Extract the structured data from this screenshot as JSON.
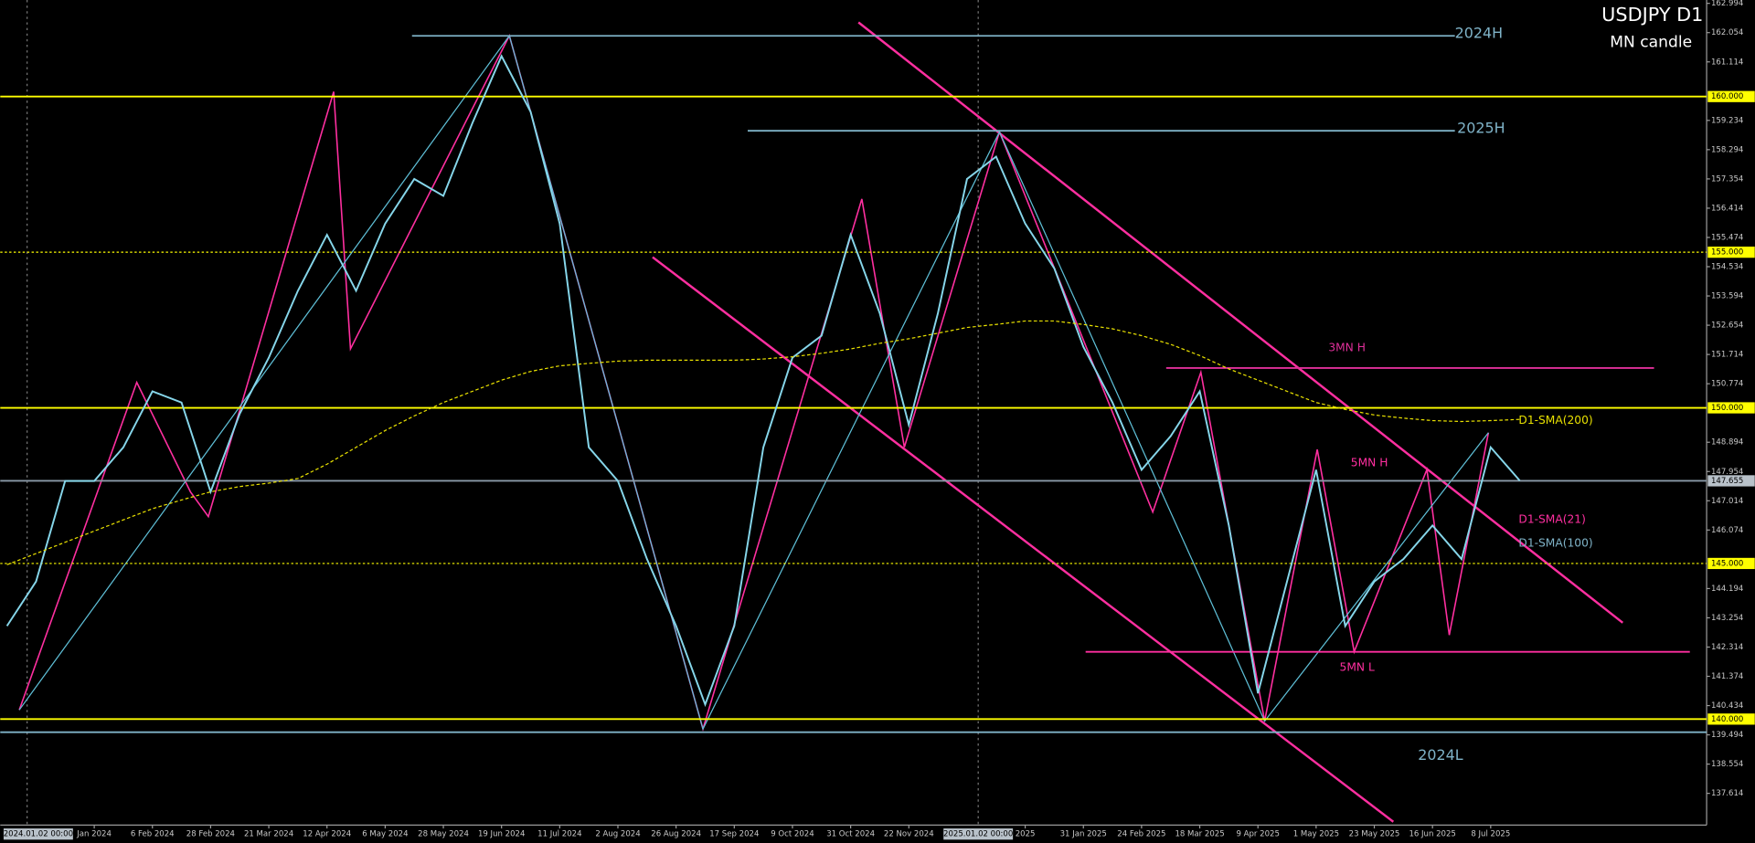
{
  "chart_data": {
    "type": "line",
    "title": "USDJPY D1",
    "subtitle": "MN candle",
    "categories": [
      null,
      null,
      null,
      "Jan 2024",
      null,
      "6 Feb 2024",
      null,
      "28 Feb 2024",
      null,
      "21 Mar 2024",
      null,
      "12 Apr 2024",
      null,
      "6 May 2024",
      null,
      "28 May 2024",
      null,
      "19 Jun 2024",
      null,
      "11 Jul 2024",
      null,
      "2 Aug 2024",
      null,
      "26 Aug 2024",
      null,
      "17 Sep 2024",
      null,
      "9 Oct 2024",
      null,
      "31 Oct 2024",
      null,
      "22 Nov 2024",
      null,
      null,
      null,
      "2025",
      null,
      "31 Jan 2025",
      null,
      "24 Feb 2025",
      null,
      "18 Mar 2025",
      null,
      "9 Apr 2025",
      null,
      "1 May 2025",
      null,
      "23 May 2025",
      null,
      "16 Jun 2025",
      null,
      "8 Jul 2025",
      null,
      null,
      null,
      null,
      null,
      null,
      null
    ],
    "series": [
      {
        "color": "#86d6ea",
        "values": [
          142.99,
          144.42,
          147.65,
          147.65,
          148.73,
          150.53,
          150.17,
          147.3,
          149.81,
          151.61,
          153.76,
          155.56,
          153.76,
          155.92,
          157.35,
          156.81,
          159.15,
          161.3,
          159.51,
          155.92,
          148.73,
          147.65,
          145.14,
          142.99,
          140.47,
          142.99,
          148.73,
          151.61,
          152.32,
          155.56,
          153.04,
          149.45,
          153.04,
          157.35,
          158.07,
          155.92,
          154.48,
          151.96,
          150.17,
          148.01,
          149.09,
          150.53,
          146.22,
          140.83,
          144.42,
          148.01,
          142.99,
          144.42,
          145.14,
          146.22,
          145.14,
          148.73,
          147.66,
          null,
          null,
          null,
          null,
          null,
          null
        ]
      },
      {
        "name": "D1-SMA(200)",
        "color": "#e8e000",
        "dashed": true,
        "values": [
          144.96,
          145.32,
          145.68,
          146.04,
          146.4,
          146.76,
          147.04,
          147.3,
          147.47,
          147.58,
          147.73,
          148.19,
          148.73,
          149.27,
          149.74,
          150.17,
          150.53,
          150.89,
          151.17,
          151.35,
          151.43,
          151.5,
          151.53,
          151.53,
          151.53,
          151.53,
          151.57,
          151.64,
          151.75,
          151.89,
          152.07,
          152.22,
          152.4,
          152.58,
          152.68,
          152.79,
          152.79,
          152.68,
          152.54,
          152.32,
          152.04,
          151.68,
          151.25,
          150.89,
          150.53,
          150.17,
          149.95,
          149.77,
          149.67,
          149.59,
          149.56,
          149.59,
          149.63,
          null,
          null,
          null,
          null,
          null,
          null
        ]
      }
    ],
    "ylim": [
      136.594,
      163.102
    ],
    "yticks": [
      162.994,
      162.054,
      161.114,
      159.234,
      158.294,
      157.354,
      156.414,
      155.474,
      154.534,
      153.594,
      152.654,
      151.714,
      150.774,
      148.894,
      147.954,
      147.014,
      146.074,
      144.194,
      143.254,
      142.314,
      141.374,
      140.434,
      139.494,
      138.554,
      137.614
    ],
    "levels": [
      {
        "value": 160,
        "label": "160.000",
        "color": "#ffff00",
        "style": "solid"
      },
      {
        "value": 155,
        "label": "155.000",
        "color": "#ffff00",
        "style": "dotted"
      },
      {
        "value": 150,
        "label": "150.000",
        "color": "#ffff00",
        "style": "solid"
      },
      {
        "value": 147.655,
        "label": "147.655",
        "color": "#8a9aa8",
        "style": "solid"
      },
      {
        "value": 145,
        "label": "145.000",
        "color": "#ffff00",
        "style": "dotted"
      },
      {
        "value": 140,
        "label": "140.000",
        "color": "#ffff00",
        "style": "solid"
      },
      {
        "value": 161.95,
        "label": "2024H",
        "color": "#7fb3c8",
        "style": "solid"
      },
      {
        "value": 158.9,
        "label": "2025H",
        "color": "#7fb3c8",
        "style": "solid"
      },
      {
        "value": 139.58,
        "label": "2024L",
        "color": "#7fb3c8",
        "style": "solid"
      },
      {
        "value": 151.28,
        "label": "3MN H",
        "color": "#e0309a",
        "style": "solid"
      },
      {
        "value": 142.16,
        "label": "5MN L",
        "color": "#ff2fa0",
        "style": "solid"
      }
    ],
    "annotations": [
      {
        "text": "5MN H",
        "color": "#ff2fa0"
      },
      {
        "text": "D1-SMA(21)",
        "color": "#ff2fa0"
      },
      {
        "text": "D1-SMA(100)",
        "color": "#7fb3c8"
      }
    ],
    "crosshair_labels": [
      "2024.01.02 00:00",
      "2025.01.02 00:00"
    ]
  }
}
